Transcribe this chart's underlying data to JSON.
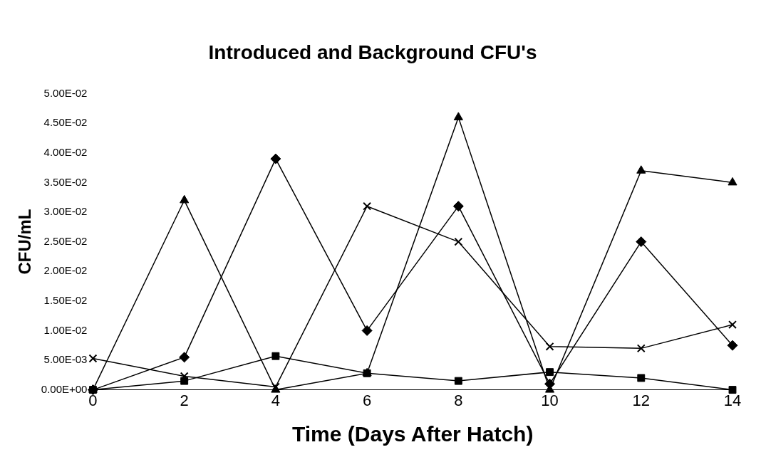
{
  "chart_data": {
    "type": "line",
    "title": "Introduced and Background CFU's",
    "xlabel": "Time (Days After Hatch)",
    "ylabel": "CFU/mL",
    "x": [
      0,
      2,
      4,
      6,
      8,
      10,
      12,
      14
    ],
    "xlim": [
      0,
      14
    ],
    "xticks": [
      0,
      2,
      4,
      6,
      8,
      10,
      12,
      14
    ],
    "ylim": [
      0,
      0.05
    ],
    "yticks": [
      {
        "value": 0,
        "label": "0.00E+00"
      },
      {
        "value": 0.005,
        "label": "5.00E-03"
      },
      {
        "value": 0.01,
        "label": "1.00E-02"
      },
      {
        "value": 0.015,
        "label": "1.50E-02"
      },
      {
        "value": 0.02,
        "label": "2.00E-02"
      },
      {
        "value": 0.025,
        "label": "2.50E-02"
      },
      {
        "value": 0.03,
        "label": "3.00E-02"
      },
      {
        "value": 0.035,
        "label": "3.50E-02"
      },
      {
        "value": 0.04,
        "label": "4.00E-02"
      },
      {
        "value": 0.045,
        "label": "4.50E-02"
      },
      {
        "value": 0.05,
        "label": "5.00E-02"
      }
    ],
    "grid": false,
    "legend": false,
    "line_style": "solid",
    "series": [
      {
        "color": "#000000",
        "marker": "triangle",
        "values": [
          0,
          0.032,
          0,
          0.0028,
          0.046,
          0,
          0.037,
          0.035
        ]
      },
      {
        "color": "#000000",
        "marker": "square",
        "values": [
          0,
          0.0015,
          0.0057,
          0.0028,
          0.0015,
          0.003,
          0.002,
          0
        ]
      },
      {
        "color": "#000000",
        "marker": "diamond",
        "values": [
          0,
          0.0055,
          0.039,
          0.01,
          0.031,
          0.001,
          0.025,
          0.0075
        ]
      },
      {
        "color": "#000000",
        "marker": "cross",
        "values": [
          0.0053,
          0.0023,
          0.0005,
          0.031,
          0.025,
          0.0073,
          0.007,
          0.011
        ]
      }
    ]
  }
}
